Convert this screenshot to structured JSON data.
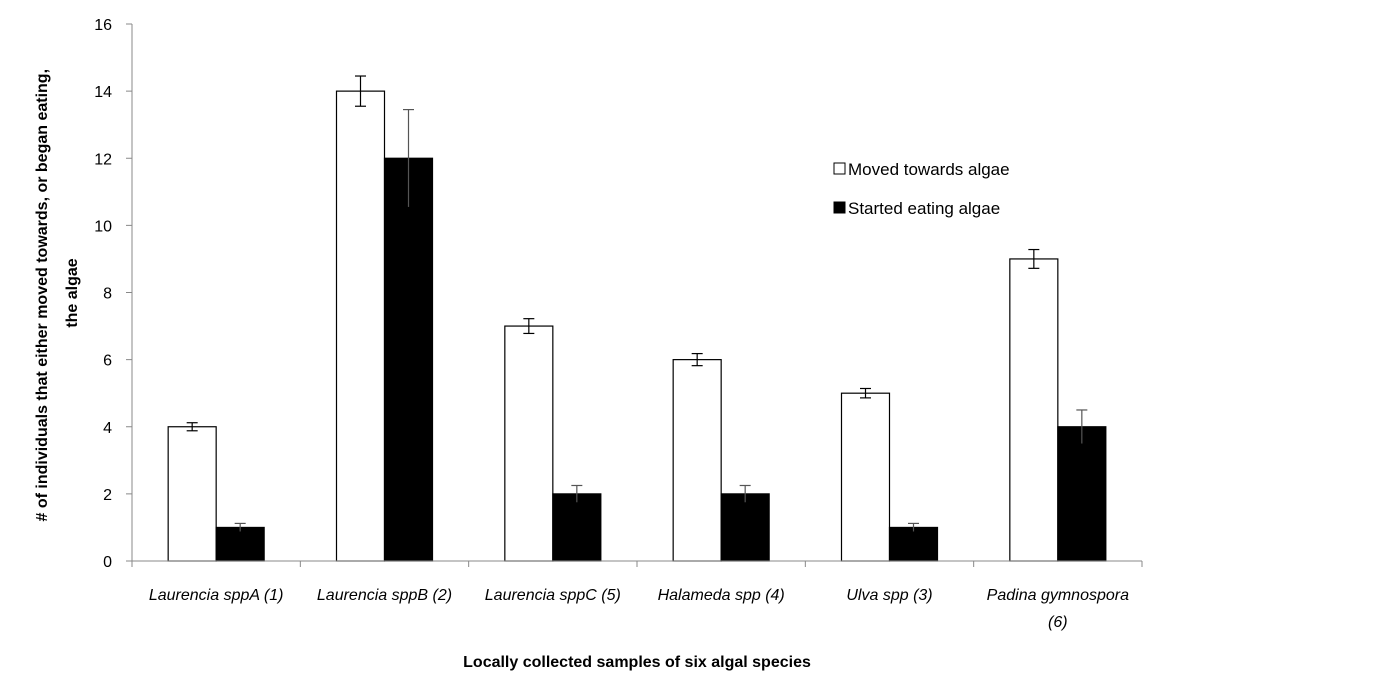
{
  "chart_data": {
    "type": "bar",
    "title": "",
    "xlabel": "Locally collected samples of six algal species",
    "ylabel_lines": [
      "# of individuals that either moved towards, or began eating,",
      "the algae"
    ],
    "ylim": [
      0,
      16
    ],
    "yticks": [
      0,
      2,
      4,
      6,
      8,
      10,
      12,
      14,
      16
    ],
    "categories": [
      [
        "Laurencia sppA (1)"
      ],
      [
        "Laurencia sppB (2)"
      ],
      [
        "Laurencia sppC (5)"
      ],
      [
        "Halameda spp (4)"
      ],
      [
        "Ulva spp (3)"
      ],
      [
        "Padina gymnospora",
        "(6)"
      ]
    ],
    "series": [
      {
        "name": "Moved towards algae",
        "color": "#ffffff",
        "stroke": "#000000",
        "values": [
          4,
          14,
          7,
          6,
          5,
          9
        ],
        "errors": [
          0.12,
          0.45,
          0.22,
          0.18,
          0.14,
          0.28
        ]
      },
      {
        "name": "Started eating algae",
        "color": "#000000",
        "stroke": "#000000",
        "values": [
          1,
          12,
          2,
          2,
          1,
          4
        ],
        "errors": [
          0.12,
          1.45,
          0.25,
          0.25,
          0.12,
          0.5
        ]
      }
    ],
    "legend_position": "upper-right",
    "grid": false
  }
}
